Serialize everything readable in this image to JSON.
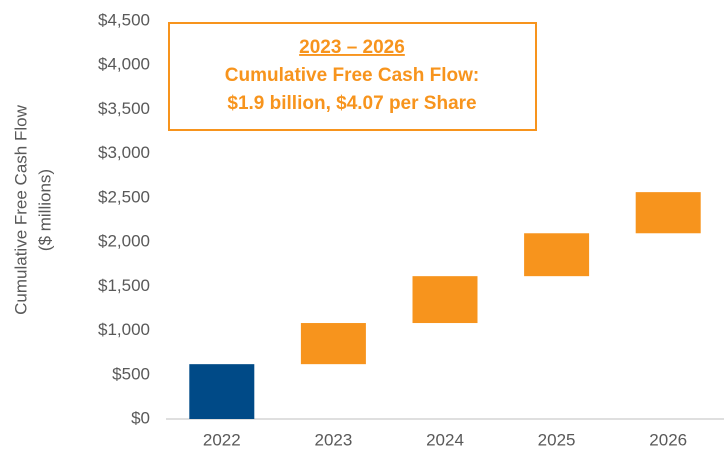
{
  "chart_data": {
    "type": "waterfall",
    "y_label": [
      "Cumulative Free Cash Flow",
      "($ millions)"
    ],
    "annotation": [
      "2023 – 2026",
      "Cumulative Free Cash Flow:",
      "$1.9 billion, $4.07 per Share"
    ],
    "categories": [
      "2022",
      "2023",
      "2024",
      "2025",
      "2026"
    ],
    "values": [
      620,
      465,
      530,
      485,
      465
    ],
    "colors": [
      "#004a87",
      "#f7941d",
      "#f7941d",
      "#f7941d",
      "#f7941d"
    ],
    "ylim": [
      0,
      4500
    ],
    "yticks": [
      {
        "value": 0,
        "label": "$0"
      },
      {
        "value": 500,
        "label": "$500"
      },
      {
        "value": 1000,
        "label": "$1,000"
      },
      {
        "value": 1500,
        "label": "$1,500"
      },
      {
        "value": 2000,
        "label": "$2,000"
      },
      {
        "value": 2500,
        "label": "$2,500"
      },
      {
        "value": 3000,
        "label": "$3,000"
      },
      {
        "value": 3500,
        "label": "$3,500"
      },
      {
        "value": 4000,
        "label": "$4,000"
      },
      {
        "value": 4500,
        "label": "$4,500"
      }
    ],
    "annotation_color": "#f7941d"
  }
}
